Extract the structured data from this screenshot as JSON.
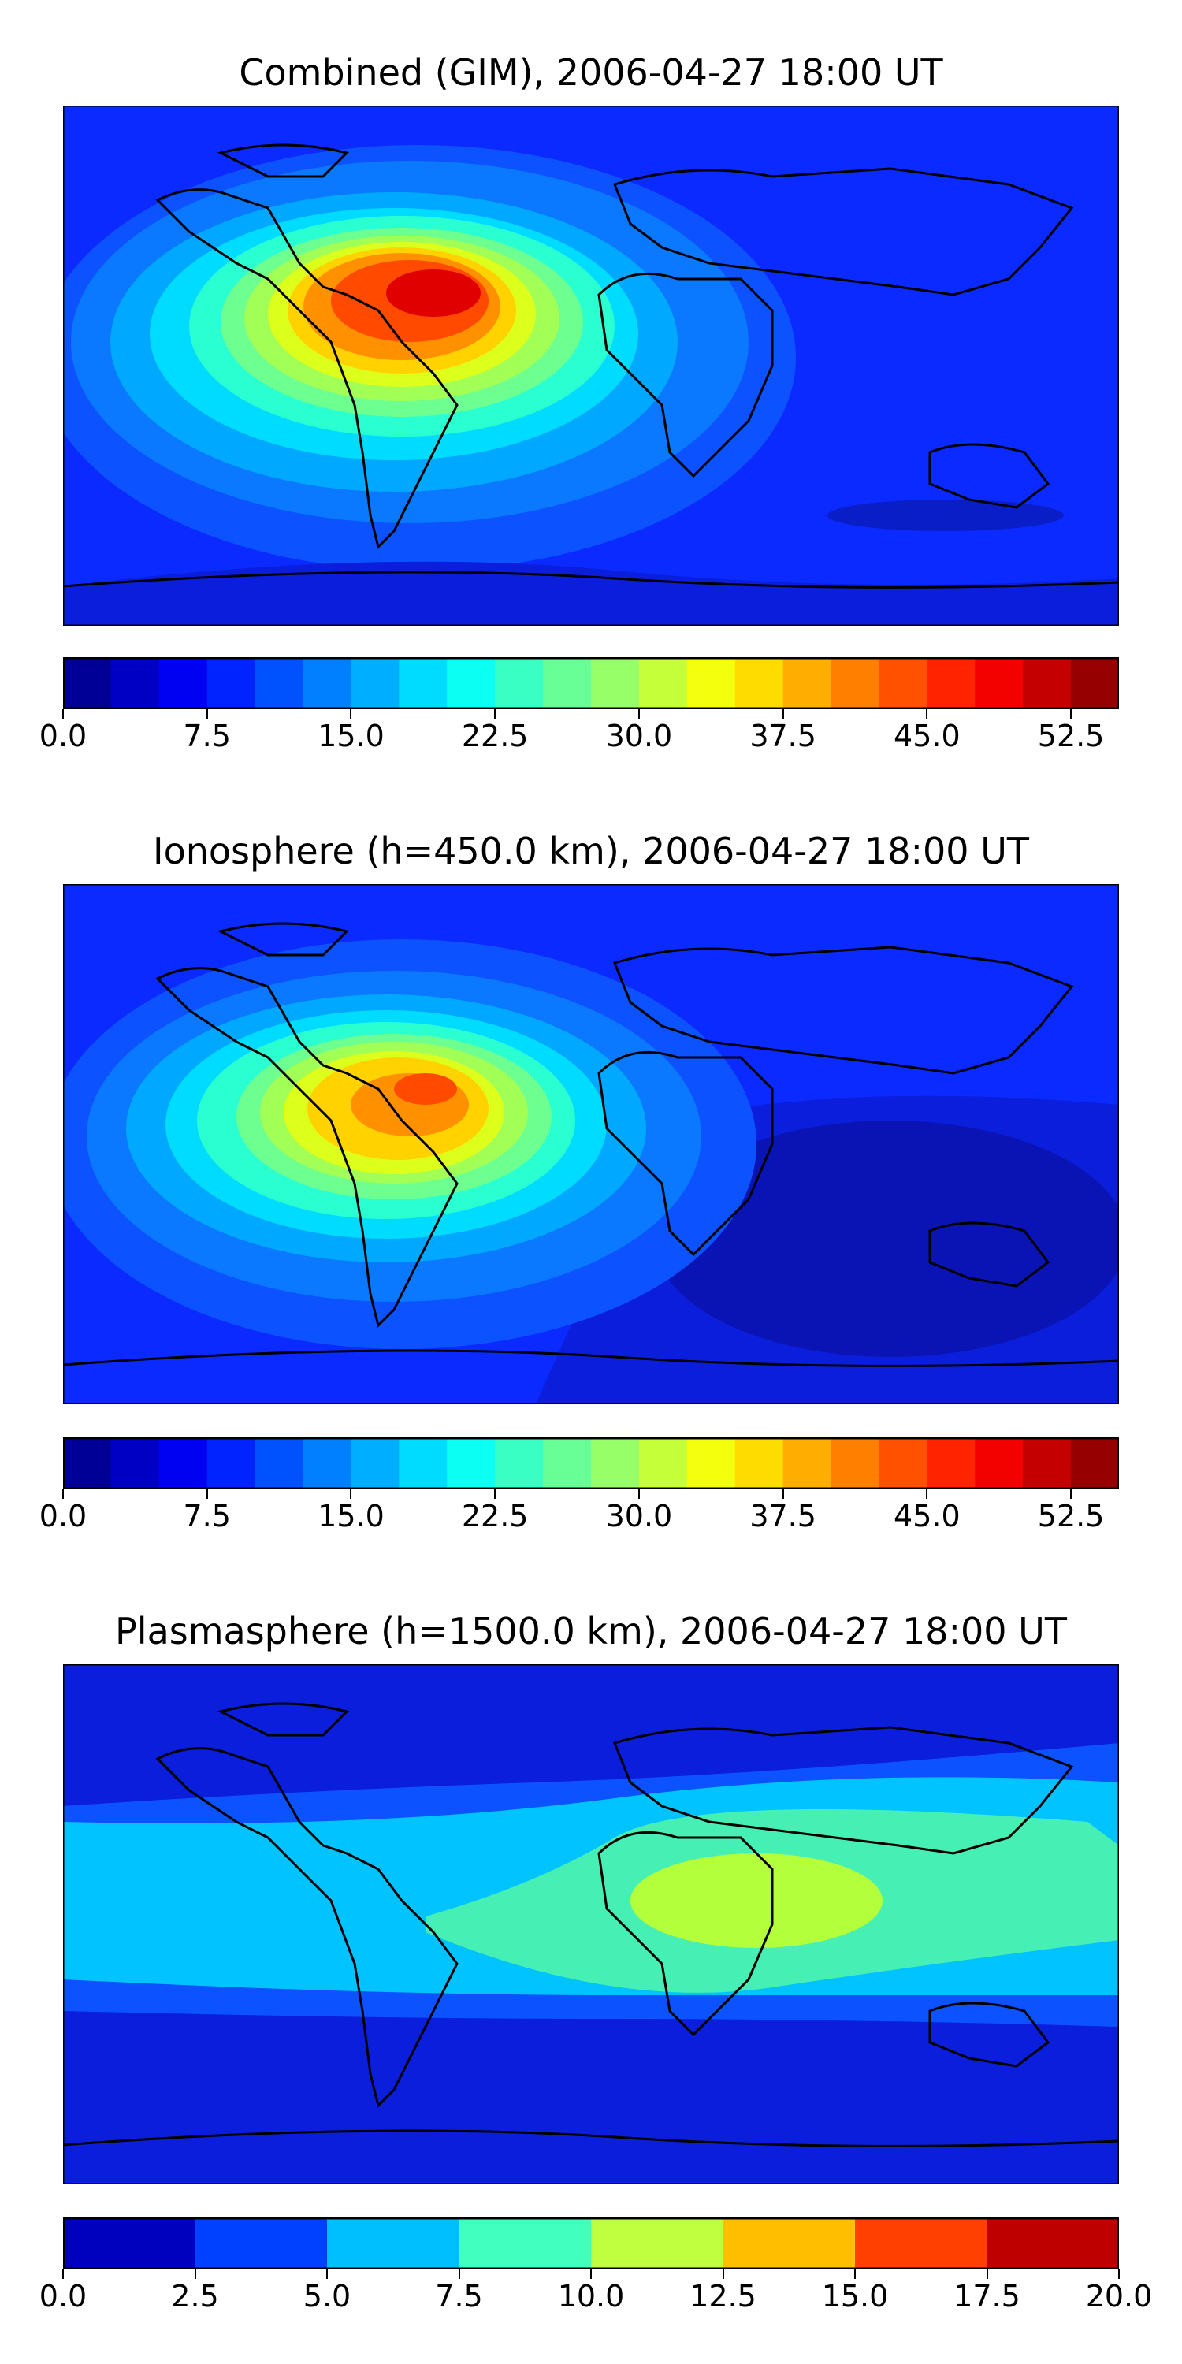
{
  "panels": [
    {
      "title": "Combined (GIM), 2006-04-27 18:00 UT",
      "colorbar": {
        "min": 0,
        "max": 55,
        "levels": 22,
        "ticks": [
          "0.0",
          "7.5",
          "15.0",
          "22.5",
          "30.0",
          "37.5",
          "45.0",
          "52.5"
        ],
        "tick_values": [
          0,
          7.5,
          15,
          22.5,
          30,
          37.5,
          45,
          52.5
        ]
      }
    },
    {
      "title": "Ionosphere  (h=450.0 km), 2006-04-27 18:00 UT",
      "colorbar": {
        "min": 0,
        "max": 55,
        "levels": 22,
        "ticks": [
          "0.0",
          "7.5",
          "15.0",
          "22.5",
          "30.0",
          "37.5",
          "45.0",
          "52.5"
        ],
        "tick_values": [
          0,
          7.5,
          15,
          22.5,
          30,
          37.5,
          45,
          52.5
        ]
      }
    },
    {
      "title": "Plasmasphere (h=1500.0 km), 2006-04-27 18:00 UT",
      "colorbar": {
        "min": 0,
        "max": 20,
        "levels": 8,
        "ticks": [
          "0.0",
          "2.5",
          "5.0",
          "7.5",
          "10.0",
          "12.5",
          "15.0",
          "17.5",
          "20.0"
        ],
        "tick_values": [
          0,
          2.5,
          5,
          7.5,
          10,
          12.5,
          15,
          17.5,
          20
        ]
      }
    }
  ],
  "chart_data": [
    {
      "type": "heatmap",
      "title": "Combined (GIM), 2006-04-27 18:00 UT",
      "projection": "global lat-lon with coastlines",
      "value_range": [
        0,
        55
      ],
      "peak": {
        "region": "northern South America / Caribbean",
        "approx_value": 52.5
      },
      "background": {
        "region": "polar and night-side",
        "approx_value": 10
      }
    },
    {
      "type": "heatmap",
      "title": "Ionosphere  (h=450.0 km), 2006-04-27 18:00 UT",
      "projection": "global lat-lon with coastlines",
      "value_range": [
        0,
        55
      ],
      "peak": {
        "region": "northern South America",
        "approx_value": 42
      },
      "background": {
        "region": "Indian Ocean / Pacific night-side",
        "approx_value": 3
      }
    },
    {
      "type": "heatmap",
      "title": "Plasmasphere (h=1500.0 km), 2006-04-27 18:00 UT",
      "projection": "global lat-lon with coastlines",
      "value_range": [
        0,
        20
      ],
      "peak": {
        "region": "Horn of Africa / Arabian Sea",
        "approx_value": 11
      },
      "background": {
        "region": "high latitudes",
        "approx_value": 2
      }
    }
  ]
}
